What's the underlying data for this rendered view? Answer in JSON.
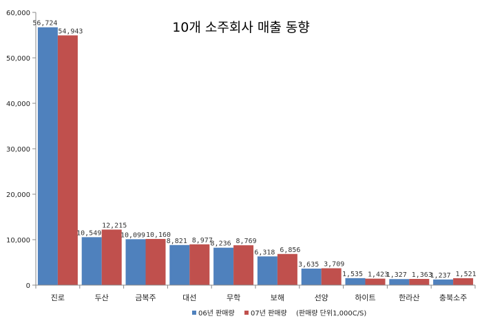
{
  "chart_data": {
    "type": "bar",
    "title": "10개 소주회사 매출 동향",
    "categories": [
      "진로",
      "두산",
      "금복주",
      "대선",
      "무학",
      "보해",
      "선양",
      "하이트",
      "한라산",
      "충북소주"
    ],
    "series": [
      {
        "name": "06년 판매량",
        "color": "#4F81BD",
        "values": [
          56724,
          10549,
          10099,
          8821,
          8236,
          6318,
          3635,
          1535,
          1327,
          1237
        ],
        "labels": [
          "56,724",
          "10,549",
          "10,099",
          "8,821",
          "8,236",
          "6,318",
          "3,635",
          "1,535",
          "1,327",
          "1,237"
        ]
      },
      {
        "name": "07년 판매량",
        "color": "#C0504D",
        "values": [
          54943,
          12215,
          10160,
          8977,
          8769,
          6856,
          3709,
          1423,
          1363,
          1521
        ],
        "labels": [
          "54,943",
          "12,215",
          "10,160",
          "8,977",
          "8,769",
          "6,856",
          "3,709",
          "1,423",
          "1,363",
          "1,521"
        ]
      }
    ],
    "ylim": [
      0,
      60000
    ],
    "yticks": [
      0,
      10000,
      20000,
      30000,
      40000,
      50000,
      60000
    ],
    "ytick_labels": [
      "0",
      "10,000",
      "20,000",
      "30,000",
      "40,000",
      "50,000",
      "60,000"
    ],
    "unit_note": "(판매량 단위1,000C/S)",
    "legend_position": "bottom",
    "grid": false
  }
}
